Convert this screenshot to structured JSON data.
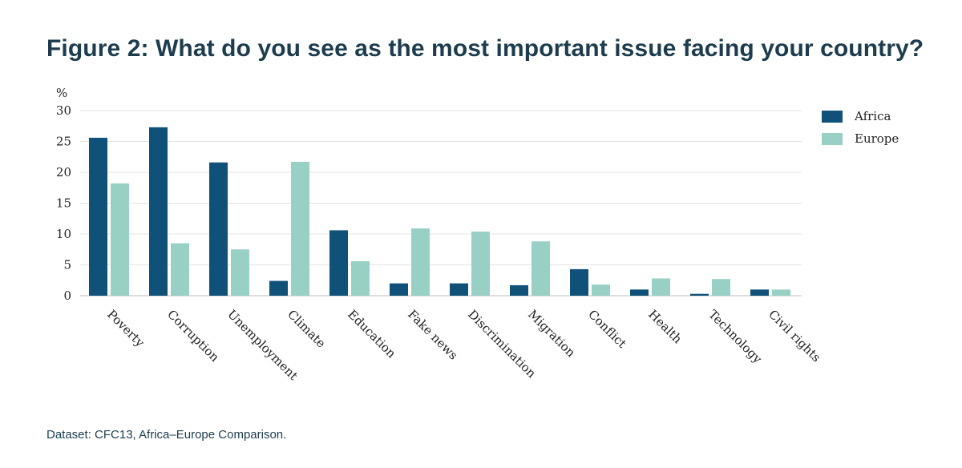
{
  "footnote": "Dataset: CFC13, Africa–Europe Comparison.",
  "chart_data": {
    "type": "bar",
    "title": "Figure 2: What do you see as the most important issue facing your country?",
    "ylabel": "%",
    "xlabel": "",
    "ylim": [
      0,
      30
    ],
    "yticks": [
      0,
      5,
      10,
      15,
      20,
      25,
      30
    ],
    "grid": true,
    "legend_position": "top-right",
    "categories": [
      "Poverty",
      "Corruption",
      "Unemployment",
      "Climate",
      "Education",
      "Fake news",
      "Discrimination",
      "Migration",
      "Conflict",
      "Health",
      "Technology",
      "Civil rights"
    ],
    "series": [
      {
        "name": "Africa",
        "color": "#0f5178",
        "values": [
          25.6,
          27.3,
          21.6,
          2.4,
          10.6,
          2.0,
          2.0,
          1.7,
          4.3,
          1.0,
          0.3,
          1.0
        ]
      },
      {
        "name": "Europe",
        "color": "#98d0c6",
        "values": [
          18.2,
          8.5,
          7.5,
          21.7,
          5.6,
          10.9,
          10.4,
          8.8,
          1.8,
          2.8,
          2.7,
          1.0
        ]
      }
    ]
  }
}
